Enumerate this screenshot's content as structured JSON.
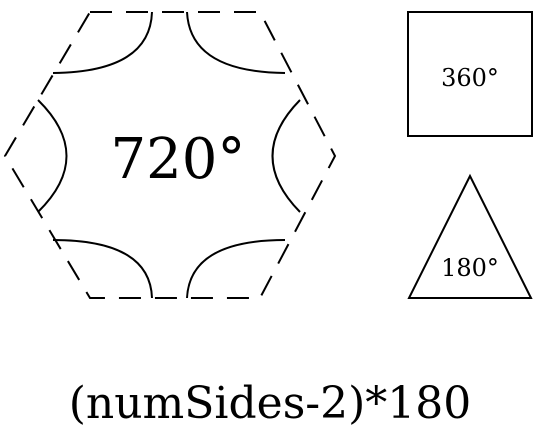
{
  "hexagon": {
    "angle_sum": "720°"
  },
  "square": {
    "angle_sum": "360°"
  },
  "triangle": {
    "angle_sum": "180°"
  },
  "formula": "(numSides-2)*180",
  "colors": {
    "stroke": "#000000",
    "background": "#ffffff",
    "text": "#000000"
  }
}
